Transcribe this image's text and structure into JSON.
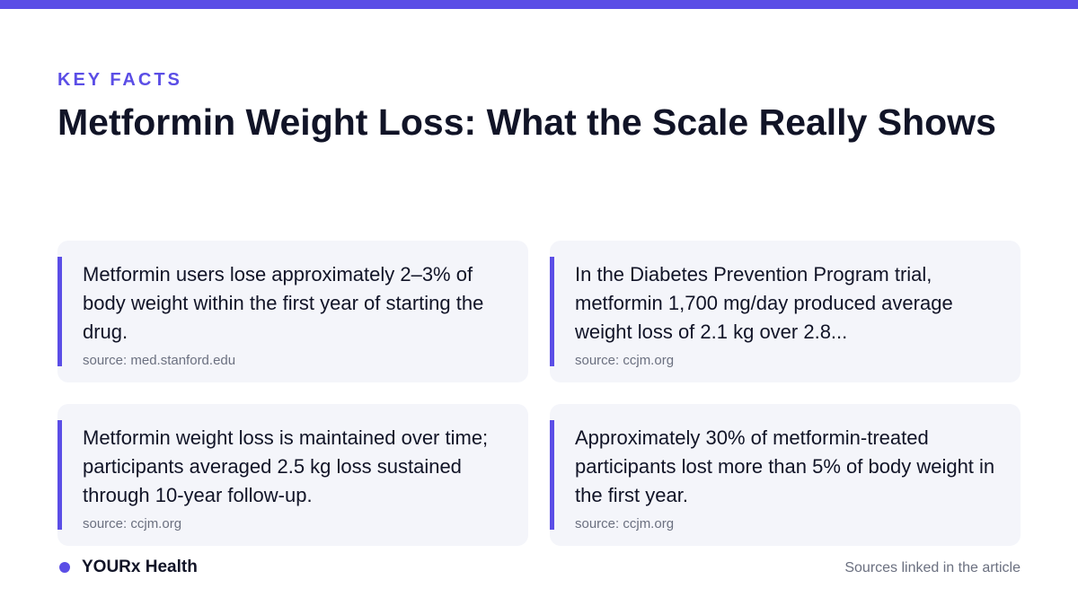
{
  "header": {
    "eyebrow": "KEY FACTS",
    "title": "Metformin Weight Loss: What the Scale Really Shows"
  },
  "facts": [
    {
      "text": "Metformin users lose approximately 2–3% of body weight within the first year of starting the drug.",
      "source": "source: med.stanford.edu"
    },
    {
      "text": "In the Diabetes Prevention Program trial, metformin 1,700 mg/day produced average weight loss of 2.1 kg over 2.8...",
      "source": "source: ccjm.org"
    },
    {
      "text": "Metformin weight loss is maintained over time; participants averaged 2.5 kg loss sustained through 10-year follow-up.",
      "source": "source: ccjm.org"
    },
    {
      "text": "Approximately 30% of metformin-treated participants lost more than 5% of body weight in the first year.",
      "source": "source: ccjm.org"
    }
  ],
  "footer": {
    "brand": "YOURx Health",
    "note": "Sources linked in the article"
  },
  "colors": {
    "accent": "#5b4ee6",
    "card_background": "#f4f5fa",
    "text": "#111427",
    "muted_text": "#6b7080"
  }
}
